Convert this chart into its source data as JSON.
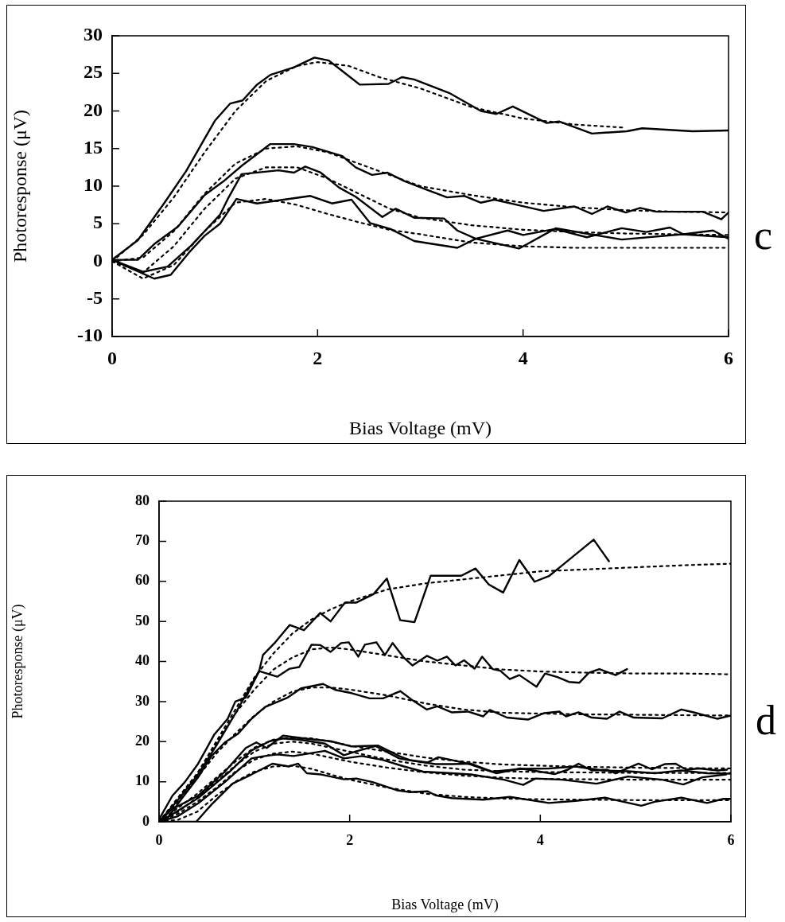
{
  "chart_data": [
    {
      "type": "line",
      "xlabel": "Bias Voltage (mV)",
      "ylabel": "Photoresponse (μV)",
      "xlim": [
        0,
        6
      ],
      "xticks": [
        0,
        2,
        4,
        6
      ],
      "ylim": [
        -10,
        30
      ],
      "yticks": [
        -10,
        -5,
        0,
        5,
        10,
        15,
        20,
        25,
        30
      ],
      "grid": false,
      "legend": false,
      "annotations": [
        "c"
      ],
      "series": [
        {
          "color": "#000000",
          "line_style": "solid",
          "x": [
            0,
            0.25,
            0.51,
            0.72,
            0.87,
            1.0,
            1.15,
            1.27,
            1.41,
            1.54,
            1.77,
            1.97,
            2.11,
            2.27,
            2.41,
            2.69,
            2.82,
            2.94,
            3.28,
            3.59,
            3.74,
            3.9,
            4.23,
            4.35,
            4.67,
            5.01,
            5.16,
            5.65,
            6.0
          ],
          "values": [
            0.2,
            2.8,
            7.8,
            12.0,
            15.6,
            18.7,
            21.0,
            21.4,
            23.5,
            24.8,
            25.8,
            27.1,
            26.7,
            25.0,
            23.5,
            23.6,
            24.5,
            24.2,
            22.4,
            20.0,
            19.6,
            20.6,
            18.4,
            18.6,
            17.0,
            17.3,
            17.7,
            17.3,
            17.4
          ]
        },
        {
          "color": "#000000",
          "line_style": "dotted",
          "x": [
            0,
            0.3,
            0.6,
            0.9,
            1.2,
            1.5,
            1.8,
            2.0,
            2.3,
            2.6,
            3.0,
            3.5,
            4.0,
            4.5,
            4.97
          ],
          "values": [
            0,
            3.5,
            8.5,
            14.5,
            20,
            24,
            26,
            26.5,
            26,
            24.5,
            23,
            20.5,
            19,
            18.2,
            17.8
          ]
        },
        {
          "color": "#000000",
          "line_style": "solid",
          "x": [
            0,
            0.25,
            0.41,
            0.64,
            0.9,
            1.08,
            1.26,
            1.54,
            1.77,
            1.95,
            2.24,
            2.37,
            2.53,
            2.68,
            2.84,
            3.05,
            3.26,
            3.43,
            3.59,
            3.72,
            3.98,
            4.2,
            4.5,
            4.67,
            4.82,
            5.0,
            5.14,
            5.3,
            5.75,
            5.93,
            6.0
          ],
          "values": [
            0.2,
            0.2,
            2.3,
            4.6,
            8.8,
            10.6,
            12.7,
            15.6,
            15.6,
            15.2,
            14.0,
            12.5,
            11.5,
            11.8,
            10.7,
            9.6,
            8.5,
            8.7,
            7.8,
            8.2,
            7.4,
            6.7,
            7.3,
            6.3,
            7.3,
            6.5,
            7.1,
            6.6,
            6.6,
            5.6,
            6.5
          ]
        },
        {
          "color": "#000000",
          "line_style": "dotted",
          "x": [
            0,
            0.3,
            0.6,
            0.9,
            1.2,
            1.5,
            1.8,
            2.1,
            2.4,
            2.7,
            3.0,
            3.5,
            4.0,
            4.5,
            5.0,
            5.5,
            6.0
          ],
          "values": [
            0,
            0.5,
            4,
            9,
            13,
            15,
            15.3,
            14.5,
            13,
            11.5,
            10,
            8.8,
            7.8,
            7.2,
            6.8,
            6.6,
            6.5
          ]
        },
        {
          "color": "#000000",
          "line_style": "solid",
          "x": [
            0,
            0.3,
            0.54,
            0.77,
            1.05,
            1.13,
            1.26,
            1.62,
            1.77,
            1.88,
            2.03,
            2.21,
            2.37,
            2.63,
            2.76,
            2.94,
            3.23,
            3.36,
            3.54,
            3.85,
            4.0,
            4.31,
            4.62,
            4.96,
            5.2,
            5.43,
            5.56,
            5.85,
            6.0
          ],
          "values": [
            0.2,
            -1.4,
            -0.7,
            2.1,
            6.2,
            8.4,
            11.6,
            12.1,
            11.8,
            12.6,
            11.8,
            9.8,
            8.6,
            5.9,
            7.0,
            5.8,
            5.7,
            4.1,
            3.0,
            4.1,
            3.5,
            4.3,
            3.2,
            4.4,
            3.9,
            4.5,
            3.6,
            4.1,
            3.0
          ]
        },
        {
          "color": "#000000",
          "line_style": "dotted",
          "x": [
            0,
            0.3,
            0.6,
            0.9,
            1.2,
            1.5,
            1.8,
            2.1,
            2.4,
            2.7,
            3.0,
            3.5,
            4.0,
            4.5,
            5.0,
            5.5,
            6.0
          ],
          "values": [
            0,
            -1.5,
            2,
            7,
            11,
            12.5,
            12.5,
            11,
            9,
            7,
            5.8,
            4.8,
            4.2,
            3.9,
            3.7,
            3.6,
            3.5
          ]
        },
        {
          "color": "#000000",
          "line_style": "solid",
          "x": [
            0,
            0.41,
            0.57,
            0.75,
            0.9,
            1.05,
            1.21,
            1.41,
            1.67,
            1.93,
            2.14,
            2.33,
            2.51,
            2.71,
            2.94,
            3.36,
            3.54,
            3.96,
            4.32,
            4.61,
            4.96,
            5.55,
            6.0
          ],
          "values": [
            0.2,
            -2.3,
            -1.8,
            1.2,
            3.4,
            5.0,
            8.3,
            7.7,
            8.2,
            8.7,
            7.7,
            8.2,
            5.1,
            4.3,
            2.7,
            1.8,
            3.0,
            1.7,
            4.4,
            3.7,
            2.9,
            3.6,
            3.2
          ]
        },
        {
          "color": "#000000",
          "line_style": "dotted",
          "x": [
            0,
            0.3,
            0.6,
            0.9,
            1.2,
            1.5,
            1.8,
            2.1,
            2.4,
            2.7,
            3.0,
            3.5,
            4.0,
            4.5,
            5.0,
            5.5,
            6.0
          ],
          "values": [
            0,
            -2.3,
            -0.5,
            4,
            7.8,
            8.3,
            7.5,
            6.3,
            5.2,
            4.2,
            3.6,
            2.5,
            2.0,
            1.8,
            1.8,
            1.8,
            1.8
          ]
        }
      ]
    },
    {
      "type": "line",
      "xlabel": "Bias Voltage (mV)",
      "ylabel": "Photoresponse (μV)",
      "xlim": [
        0,
        6
      ],
      "xticks": [
        0,
        2,
        4,
        6
      ],
      "ylim": [
        0,
        80
      ],
      "yticks": [
        0,
        10,
        20,
        30,
        40,
        50,
        60,
        70,
        80
      ],
      "grid": false,
      "legend": false,
      "annotations": [
        "d"
      ],
      "series": [
        {
          "color": "#000000",
          "line_style": "solid",
          "x": [
            0,
            0.14,
            0.27,
            0.41,
            0.58,
            0.72,
            0.8,
            0.91,
            1.05,
            1.09,
            1.22,
            1.37,
            1.52,
            1.69,
            1.8,
            1.95,
            2.07,
            2.25,
            2.39,
            2.53,
            2.68,
            2.85,
            3.07,
            3.17,
            3.32,
            3.46,
            3.61,
            3.78,
            3.94,
            4.09,
            4.23,
            4.56,
            4.72
          ],
          "values": [
            0.6,
            6.5,
            9.9,
            14.5,
            21.8,
            25.7,
            30,
            31,
            37.6,
            41.6,
            44.8,
            49.1,
            47.8,
            52.1,
            50.0,
            54.7,
            54.7,
            56.8,
            60.7,
            50.3,
            49.8,
            61.4,
            61.4,
            61.4,
            63.2,
            59.2,
            57.2,
            65.3,
            59.9,
            61.3,
            64.0,
            70.4,
            65.0
          ]
        },
        {
          "color": "#000000",
          "line_style": "dotted",
          "x": [
            0,
            0.2,
            0.4,
            0.6,
            0.8,
            1.0,
            1.2,
            1.4,
            1.6,
            1.8,
            2.0,
            2.4,
            2.8,
            3.2,
            3.6,
            4.0,
            4.5,
            5.0,
            5.5,
            6.0
          ],
          "values": [
            0,
            6,
            12,
            20,
            28,
            36,
            42,
            47,
            50.5,
            53,
            55,
            58,
            59.5,
            60.5,
            61.5,
            62.5,
            63,
            63.5,
            64,
            64.4
          ]
        },
        {
          "color": "#000000",
          "line_style": "solid",
          "x": [
            0,
            0.2,
            0.4,
            0.6,
            0.8,
            1.05,
            1.24,
            1.37,
            1.47,
            1.6,
            1.69,
            1.8,
            1.91,
            1.99,
            2.09,
            2.16,
            2.28,
            2.37,
            2.45,
            2.57,
            2.66,
            2.81,
            2.92,
            3.02,
            3.11,
            3.2,
            3.31,
            3.39,
            3.5,
            3.58,
            3.68,
            3.78,
            3.96,
            4.05,
            4.18,
            4.3,
            4.41,
            4.51,
            4.62,
            4.79,
            4.91
          ],
          "values": [
            0,
            5.5,
            11.5,
            19,
            27,
            37.6,
            36.2,
            38.2,
            38.6,
            44.2,
            44.1,
            42.4,
            44.6,
            44.8,
            41.2,
            44.2,
            44.8,
            41.6,
            44.6,
            40.9,
            39.0,
            41.4,
            40.2,
            41.2,
            39.0,
            40.3,
            38.2,
            41.2,
            38.1,
            37.7,
            35.6,
            36.6,
            33.7,
            37.0,
            36.1,
            34.9,
            34.7,
            37.2,
            38.1,
            36.6,
            38.1
          ]
        },
        {
          "color": "#000000",
          "line_style": "dotted",
          "x": [
            0,
            0.2,
            0.4,
            0.6,
            0.8,
            1.0,
            1.2,
            1.4,
            1.6,
            1.8,
            2.0,
            2.4,
            2.8,
            3.2,
            3.6,
            4.0,
            4.5,
            5.0,
            5.5,
            6.0
          ],
          "values": [
            0,
            6,
            12,
            19.5,
            27,
            33,
            38,
            41,
            43,
            43.5,
            43,
            41.5,
            40,
            39,
            38,
            37.5,
            37.2,
            37,
            37,
            36.8
          ]
        },
        {
          "color": "#000000",
          "line_style": "solid",
          "x": [
            0,
            0.08,
            0.22,
            0.41,
            0.55,
            0.69,
            0.83,
            0.97,
            1.11,
            1.35,
            1.49,
            1.72,
            1.85,
            2.02,
            2.21,
            2.35,
            2.53,
            2.66,
            2.81,
            2.92,
            3.07,
            3.24,
            3.4,
            3.47,
            3.65,
            3.87,
            4.04,
            4.2,
            4.27,
            4.4,
            4.54,
            4.7,
            4.83,
            4.98,
            5.28,
            5.48,
            5.61,
            5.86,
            6.0
          ],
          "values": [
            0,
            0.6,
            5.2,
            11.1,
            16.4,
            19.8,
            22.0,
            25.7,
            28.6,
            31.0,
            33.3,
            34.4,
            32.9,
            32.1,
            30.8,
            30.8,
            32.6,
            30.3,
            28.0,
            28.8,
            27.3,
            27.5,
            26.3,
            27.9,
            26.0,
            25.5,
            27.1,
            27.5,
            26.3,
            27.3,
            26.0,
            25.7,
            27.5,
            26.0,
            25.8,
            28.0,
            27.3,
            25.7,
            26.5
          ]
        },
        {
          "color": "#000000",
          "line_style": "dotted",
          "x": [
            0,
            0.2,
            0.4,
            0.6,
            0.8,
            1.0,
            1.2,
            1.4,
            1.6,
            1.8,
            2.0,
            2.4,
            2.8,
            3.2,
            3.6,
            4.0,
            4.5,
            5.0,
            5.5,
            6.0
          ],
          "values": [
            0,
            5,
            11,
            17,
            22,
            26.5,
            30,
            32.5,
            33.5,
            33.5,
            33,
            31.5,
            29.5,
            28,
            27.2,
            27,
            26.8,
            26.7,
            26.6,
            26.5
          ]
        },
        {
          "color": "#000000",
          "line_style": "solid",
          "x": [
            0,
            0.14,
            0.41,
            0.69,
            0.91,
            1.02,
            1.13,
            1.3,
            1.52,
            1.8,
            2.02,
            2.3,
            2.52,
            2.63,
            2.82,
            2.93,
            3.07,
            3.24,
            3.49,
            3.82,
            4.09,
            4.37,
            4.65,
            4.92,
            5.2,
            5.48,
            5.75,
            6.0
          ],
          "values": [
            0.1,
            3.2,
            6.5,
            12.5,
            18.4,
            19.8,
            18.4,
            21.5,
            20.8,
            20.1,
            18.8,
            19.0,
            16.4,
            15.4,
            14.8,
            16.1,
            15.4,
            14.5,
            12.5,
            13.2,
            13.3,
            13.8,
            12.8,
            12.6,
            12.1,
            12.8,
            12.1,
            12.0
          ]
        },
        {
          "color": "#000000",
          "line_style": "dotted",
          "x": [
            0,
            0.2,
            0.4,
            0.6,
            0.8,
            1.0,
            1.2,
            1.4,
            1.6,
            1.8,
            2.0,
            2.4,
            2.8,
            3.2,
            3.6,
            4.0,
            4.5,
            5.0,
            5.5,
            6.0
          ],
          "values": [
            0,
            3.5,
            7,
            11,
            15,
            18.5,
            20.5,
            21,
            20.8,
            20,
            19,
            17.5,
            16,
            15,
            14.3,
            14,
            13.7,
            13.5,
            13.4,
            13.3
          ]
        },
        {
          "color": "#000000",
          "line_style": "solid",
          "x": [
            0,
            0.14,
            0.41,
            0.74,
            0.97,
            1.16,
            1.3,
            1.47,
            1.74,
            1.94,
            2.07,
            2.27,
            2.52,
            2.69,
            2.9,
            3.07,
            3.27,
            3.54,
            3.79,
            4.15,
            4.29,
            4.4,
            4.54,
            4.7,
            4.79,
            5.03,
            5.17,
            5.31,
            5.42,
            5.53,
            5.67,
            5.86,
            5.96
          ],
          "values": [
            0,
            1.9,
            5.9,
            12.5,
            17.8,
            20.1,
            20.8,
            20.5,
            19.5,
            16.6,
            17.6,
            18.9,
            15.8,
            15.1,
            14.4,
            14.4,
            14.5,
            12.1,
            13.3,
            11.9,
            13.0,
            14.5,
            12.8,
            13.0,
            12.1,
            14.5,
            13.1,
            14.4,
            14.5,
            13.0,
            13.3,
            12.8,
            13.0
          ]
        },
        {
          "color": "#000000",
          "line_style": "dotted",
          "x": [
            0,
            0.2,
            0.4,
            0.6,
            0.8,
            1.0,
            1.2,
            1.4,
            1.6,
            1.8,
            2.0,
            2.4,
            2.8,
            3.2,
            3.6,
            4.0,
            4.5,
            5.0,
            5.5,
            6.0
          ],
          "values": [
            0,
            2.5,
            6,
            10,
            14,
            17.5,
            19.5,
            20,
            19.5,
            18.5,
            17.5,
            15.5,
            14,
            13,
            12.6,
            12.4,
            12.3,
            12.2,
            12.2,
            12.2
          ]
        },
        {
          "color": "#000000",
          "line_style": "solid",
          "x": [
            0,
            0.19,
            0.41,
            0.69,
            0.97,
            1.08,
            1.24,
            1.41,
            1.74,
            1.94,
            2.13,
            2.35,
            2.57,
            2.77,
            3.07,
            3.27,
            3.62,
            3.82,
            3.95,
            4.23,
            4.59,
            4.92,
            5.28,
            5.5,
            5.7,
            5.95
          ],
          "values": [
            0,
            1.3,
            4.6,
            9.9,
            15.8,
            16.3,
            16.8,
            16.4,
            17.7,
            15.8,
            16.4,
            15.4,
            13.8,
            12.5,
            12.1,
            11.8,
            10.5,
            9.2,
            10.8,
            10.5,
            9.5,
            11.3,
            10.5,
            9.3,
            11.1,
            11.8
          ]
        },
        {
          "color": "#000000",
          "line_style": "dotted",
          "x": [
            0,
            0.2,
            0.4,
            0.6,
            0.8,
            1.0,
            1.2,
            1.4,
            1.6,
            1.8,
            2.0,
            2.4,
            2.8,
            3.2,
            3.6,
            4.0,
            4.5,
            5.0,
            5.5,
            6.0
          ],
          "values": [
            0,
            2,
            5,
            8.5,
            12.5,
            15.5,
            17,
            17.5,
            17,
            16,
            15,
            13.5,
            12.3,
            11.5,
            11,
            10.7,
            10.6,
            10.5,
            10.5,
            10.5
          ]
        },
        {
          "color": "#000000",
          "line_style": "solid",
          "x": [
            0,
            0.39,
            0.55,
            0.77,
            0.97,
            1.19,
            1.36,
            1.46,
            1.55,
            1.7,
            1.94,
            2.07,
            2.24,
            2.49,
            2.63,
            2.82,
            2.9,
            3.07,
            3.4,
            3.68,
            4.09,
            4.37,
            4.68,
            5.06,
            5.2,
            5.48,
            5.75,
            5.92,
            6.0
          ],
          "values": [
            0,
            0,
            4.3,
            9.5,
            11.8,
            14.5,
            13.8,
            14.5,
            12.1,
            11.8,
            10.6,
            10.8,
            9.9,
            7.9,
            7.4,
            7.6,
            6.6,
            5.9,
            5.5,
            6.2,
            4.7,
            5.2,
            6.0,
            4.0,
            5.0,
            6.0,
            4.7,
            5.7,
            5.7
          ]
        },
        {
          "color": "#000000",
          "line_style": "dotted",
          "x": [
            0,
            0.2,
            0.4,
            0.6,
            0.8,
            1.0,
            1.2,
            1.4,
            1.6,
            1.8,
            2.0,
            2.4,
            2.8,
            3.2,
            3.6,
            4.0,
            4.5,
            5.0,
            5.5,
            6.0
          ],
          "values": [
            0,
            0.5,
            2.5,
            6.5,
            10,
            12.5,
            13.8,
            14,
            13.2,
            11.8,
            10.5,
            8.5,
            7,
            6.2,
            5.8,
            5.6,
            5.5,
            5.4,
            5.4,
            5.4
          ]
        }
      ]
    }
  ]
}
